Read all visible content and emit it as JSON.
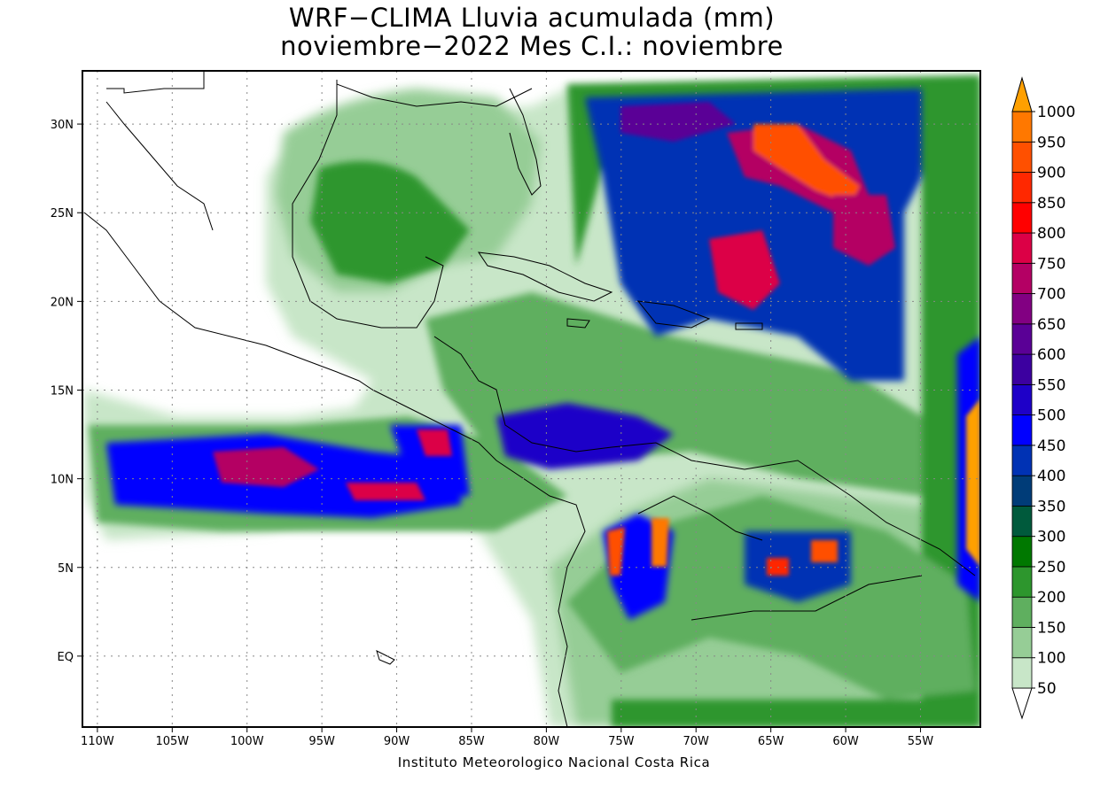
{
  "title": {
    "line1": "WRF−CLIMA Lluvia acumulada (mm)",
    "line2": "noviembre−2022 Mes C.I.: noviembre"
  },
  "footer": "Instituto Meteorologico Nacional Costa Rica",
  "map": {
    "lon_range": [
      -111,
      -51
    ],
    "lat_range": [
      -4,
      33
    ],
    "lon_ticks": [
      {
        "value": -110,
        "label": "110W"
      },
      {
        "value": -105,
        "label": "105W"
      },
      {
        "value": -100,
        "label": "100W"
      },
      {
        "value": -95,
        "label": "95W"
      },
      {
        "value": -90,
        "label": "90W"
      },
      {
        "value": -85,
        "label": "85W"
      },
      {
        "value": -80,
        "label": "80W"
      },
      {
        "value": -75,
        "label": "75W"
      },
      {
        "value": -70,
        "label": "70W"
      },
      {
        "value": -65,
        "label": "65W"
      },
      {
        "value": -60,
        "label": "60W"
      },
      {
        "value": -55,
        "label": "55W"
      }
    ],
    "lat_ticks": [
      {
        "value": 0,
        "label": "EQ"
      },
      {
        "value": 5,
        "label": "5N"
      },
      {
        "value": 10,
        "label": "10N"
      },
      {
        "value": 15,
        "label": "15N"
      },
      {
        "value": 20,
        "label": "20N"
      },
      {
        "value": 25,
        "label": "25N"
      },
      {
        "value": 30,
        "label": "30N"
      }
    ],
    "grid": true
  },
  "legend": {
    "levels": [
      {
        "label": "50",
        "color": "#c8e6c8"
      },
      {
        "label": "100",
        "color": "#96cd96"
      },
      {
        "label": "150",
        "color": "#5faf5f"
      },
      {
        "label": "200",
        "color": "#2d962d"
      },
      {
        "label": "250",
        "color": "#007800"
      },
      {
        "label": "300",
        "color": "#005a3c"
      },
      {
        "label": "350",
        "color": "#003c78"
      },
      {
        "label": "400",
        "color": "#0032b4"
      },
      {
        "label": "450",
        "color": "#0000ff"
      },
      {
        "label": "500",
        "color": "#1e00c8"
      },
      {
        "label": "550",
        "color": "#3c00a0"
      },
      {
        "label": "600",
        "color": "#5a0096"
      },
      {
        "label": "650",
        "color": "#820082"
      },
      {
        "label": "700",
        "color": "#b40064"
      },
      {
        "label": "750",
        "color": "#dc0046"
      },
      {
        "label": "800",
        "color": "#ff0000"
      },
      {
        "label": "850",
        "color": "#ff2800"
      },
      {
        "label": "900",
        "color": "#ff5000"
      },
      {
        "label": "950",
        "color": "#ff7800"
      },
      {
        "label": "1000",
        "color": "#ffa000"
      }
    ]
  }
}
